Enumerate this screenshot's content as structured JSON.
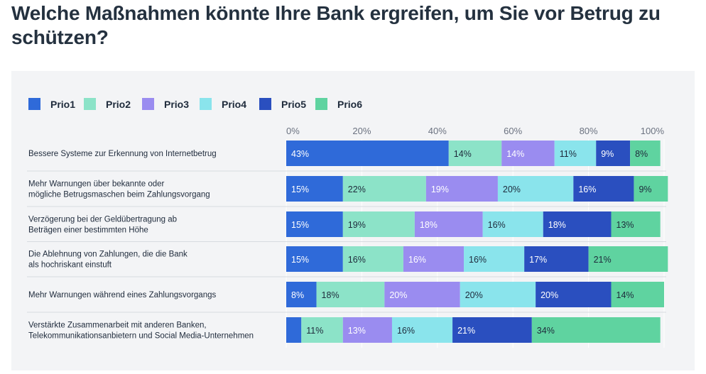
{
  "title": "Welche Maßnahmen könnte Ihre Bank ergreifen, um Sie vor Betrug zu schützen?",
  "chart_data": {
    "type": "bar",
    "orientation": "horizontal",
    "stacked": true,
    "xlim": [
      0,
      100
    ],
    "ticks": [
      "0%",
      "20%",
      "40%",
      "60%",
      "80%",
      "100%"
    ],
    "tick_values": [
      0,
      20,
      40,
      60,
      80,
      100
    ],
    "grid": true,
    "legend_position": "top-left",
    "categories": [
      [
        "Bessere Systeme zur Erkennung von Internetbetrug"
      ],
      [
        "Mehr Warnungen über bekannte oder",
        "mögliche Betrugsmaschen beim Zahlungsvorgang"
      ],
      [
        "Verzögerung bei der Geldübertragung ab",
        "Beträgen einer bestimmten Höhe"
      ],
      [
        "Die Ablehnung von Zahlungen, die die Bank",
        "als hochriskant einstuft"
      ],
      [
        "Mehr Warnungen während eines Zahlungsvorgangs"
      ],
      [
        "Verstärkte Zusammenarbeit mit anderen Banken,",
        "Telekommunikationsanbietern und Social Media-Unternehmen"
      ]
    ],
    "series": [
      {
        "name": "Prio1",
        "color": "#2f6ad9",
        "label_color": "#ffffff",
        "values": [
          43,
          15,
          15,
          15,
          8,
          4
        ],
        "labels": [
          "43%",
          "15%",
          "15%",
          "15%",
          "8%",
          ""
        ]
      },
      {
        "name": "Prio2",
        "color": "#8ce3c8",
        "label_color": "#1e2a3b",
        "values": [
          14,
          22,
          19,
          16,
          18,
          11
        ],
        "labels": [
          "14%",
          "22%",
          "19%",
          "16%",
          "18%",
          "11%"
        ]
      },
      {
        "name": "Prio3",
        "color": "#9a8cf0",
        "label_color": "#ffffff",
        "values": [
          14,
          19,
          18,
          16,
          20,
          13
        ],
        "labels": [
          "14%",
          "19%",
          "18%",
          "16%",
          "20%",
          "13%"
        ]
      },
      {
        "name": "Prio4",
        "color": "#8ae4ec",
        "label_color": "#1e2a3b",
        "values": [
          11,
          20,
          16,
          16,
          20,
          16
        ],
        "labels": [
          "11%",
          "20%",
          "16%",
          "16%",
          "20%",
          "16%"
        ]
      },
      {
        "name": "Prio5",
        "color": "#2a4fbf",
        "label_color": "#ffffff",
        "values": [
          9,
          16,
          18,
          17,
          20,
          21
        ],
        "labels": [
          "9%",
          "16%",
          "18%",
          "17%",
          "20%",
          "21%"
        ]
      },
      {
        "name": "Prio6",
        "color": "#5fd3a0",
        "label_color": "#1e2a3b",
        "values": [
          8,
          9,
          13,
          21,
          14,
          34
        ],
        "labels": [
          "8%",
          "9%",
          "13%",
          "21%",
          "14%",
          "34%"
        ]
      }
    ]
  }
}
